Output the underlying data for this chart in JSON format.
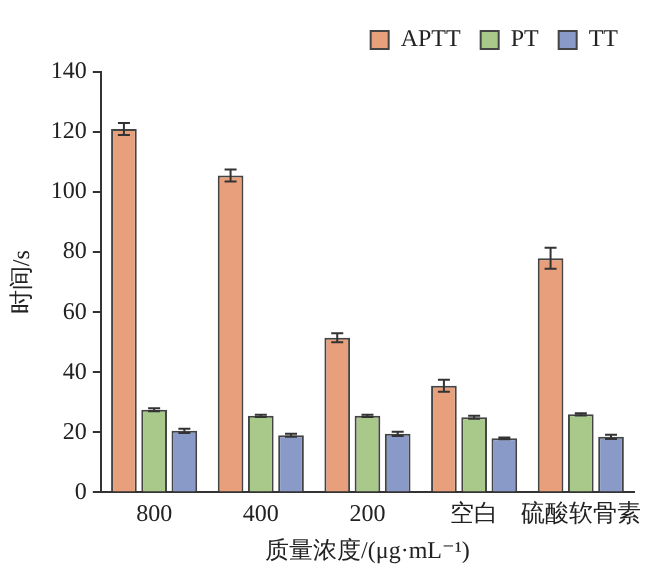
{
  "chart_data": {
    "type": "bar",
    "xlabel": "质量浓度/(μg·mL⁻¹)",
    "ylabel": "时间/s",
    "categories": [
      "800",
      "400",
      "200",
      "空白",
      "硫酸软骨素"
    ],
    "series": [
      {
        "name": "APTT",
        "color": "#e8a07c",
        "values": [
          121,
          105.5,
          51.5,
          35.5,
          78
        ],
        "errors": [
          2,
          2,
          1.5,
          2,
          3.5
        ]
      },
      {
        "name": "PT",
        "color": "#a9c98b",
        "values": [
          27.5,
          25.5,
          25.5,
          25,
          26
        ],
        "errors": [
          0.5,
          0.4,
          0.4,
          0.5,
          0.4
        ]
      },
      {
        "name": "TT",
        "color": "#8a9ac8",
        "values": [
          20.5,
          19,
          19.5,
          18,
          18.5
        ],
        "errors": [
          0.7,
          0.5,
          0.7,
          0.3,
          0.7
        ]
      }
    ],
    "ylim": [
      0,
      140
    ],
    "yticks": [
      0,
      20,
      40,
      60,
      80,
      100,
      120,
      140
    ],
    "grid": false,
    "legend": "top right"
  }
}
